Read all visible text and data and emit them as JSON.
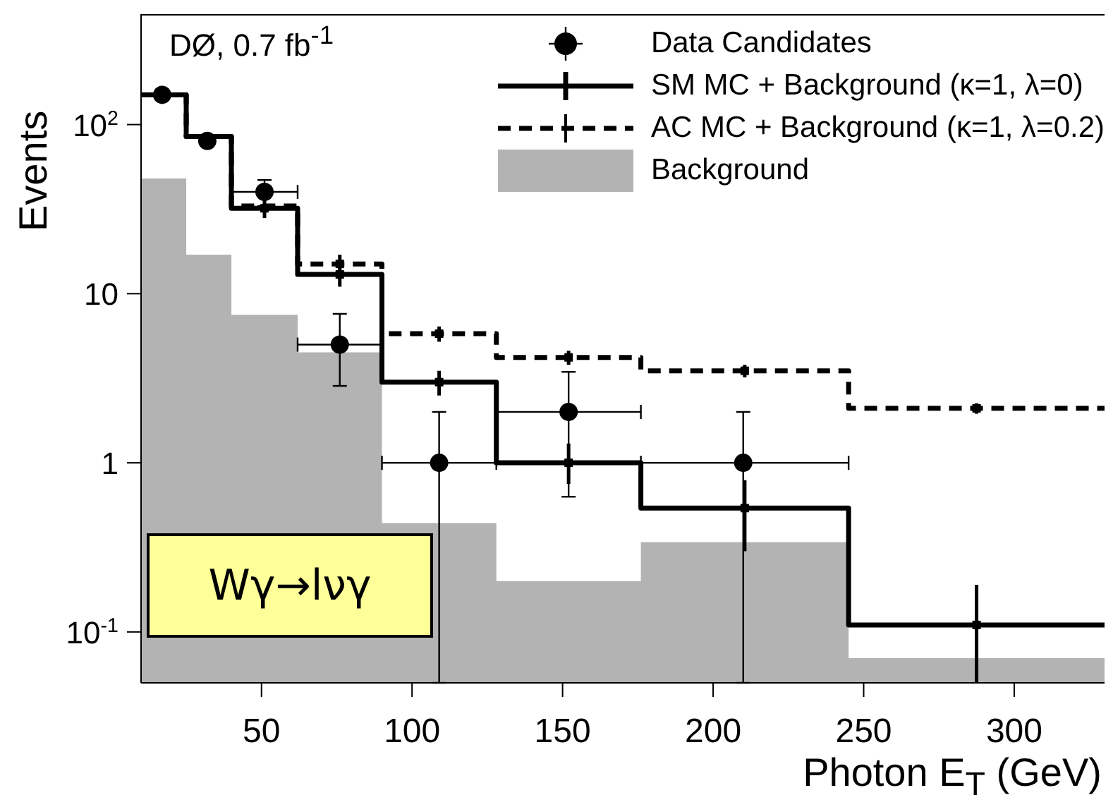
{
  "chart_data": {
    "type": "histogram",
    "xlabel": "Photon E$_{T}$ (GeV)",
    "ylabel": "Events",
    "bins": [
      10,
      25,
      40,
      62,
      90,
      128,
      176,
      245,
      330
    ],
    "xlim": [
      10,
      330
    ],
    "xticks": [
      50,
      100,
      150,
      200,
      250,
      300
    ],
    "ylim": [
      0.05,
      450
    ],
    "yticks": [
      {
        "value": 0.1,
        "label": "10$^{-1}$"
      },
      1,
      10,
      {
        "value": 100,
        "label": "10$^{2}$"
      }
    ],
    "log": "y",
    "legend": "top right",
    "annotations": [
      "DØ, 0.7 fb$^{-1}$",
      "Wγ→lνγ"
    ],
    "series": [
      {
        "name": "Data Candidates",
        "type": "scatter",
        "marker": "circle",
        "color": "#000000",
        "x": [
          17,
          32,
          51,
          76,
          109,
          152,
          210
        ],
        "values": [
          150,
          80,
          40,
          5,
          1,
          2,
          1
        ],
        "errors": [
          null,
          null,
          [
            33,
            47
          ],
          [
            2.85,
            7.6
          ],
          [
            0.05,
            2
          ],
          [
            0.63,
            3.45
          ],
          [
            0.05,
            2
          ]
        ],
        "xerrors": [
          null,
          null,
          [
            40,
            62
          ],
          [
            62,
            90
          ],
          [
            90,
            128
          ],
          [
            128,
            176
          ],
          [
            176,
            245
          ]
        ]
      },
      {
        "name": "SM MC + Background (κ=1, λ=0)",
        "line_style": "solid",
        "color": "#000000",
        "values": [
          150,
          85,
          32,
          13,
          3,
          1,
          0.54,
          0.11
        ]
      },
      {
        "name": "AC MC + Background (κ=1, λ=0.2)",
        "line_style": "dashed",
        "color": "#000000",
        "values": [
          150,
          85,
          33,
          15,
          5.8,
          4.2,
          3.5,
          2.1
        ]
      },
      {
        "name": "Background",
        "color": "#b3b3b3",
        "values": [
          48,
          17,
          7.5,
          4.5,
          0.44,
          0.2,
          0.34,
          0.07
        ]
      },
      {
        "type": "scatter",
        "marker": "square",
        "color": "#000000",
        "x": [
          51,
          76,
          109,
          152,
          210.5,
          287.5
        ],
        "values": [
          32,
          13,
          3,
          1,
          0.54,
          0.11
        ],
        "errors": [
          [
            28,
            36
          ],
          [
            11,
            15
          ],
          [
            2.5,
            3.5
          ],
          [
            0.75,
            1.3
          ],
          [
            0.3,
            0.79
          ],
          [
            0.05,
            0.19
          ]
        ]
      },
      {
        "type": "scatter",
        "marker": "square",
        "color": "#000000",
        "x": [
          76,
          109,
          152,
          210.5,
          287.5
        ],
        "values": [
          15,
          5.8,
          4.2,
          3.5,
          2.1
        ],
        "errors": [
          [
            14,
            17
          ],
          [
            5.2,
            6.4
          ],
          [
            3.8,
            4.6
          ],
          [
            3.2,
            3.8
          ],
          [
            1.95,
            2.25
          ]
        ]
      }
    ]
  }
}
